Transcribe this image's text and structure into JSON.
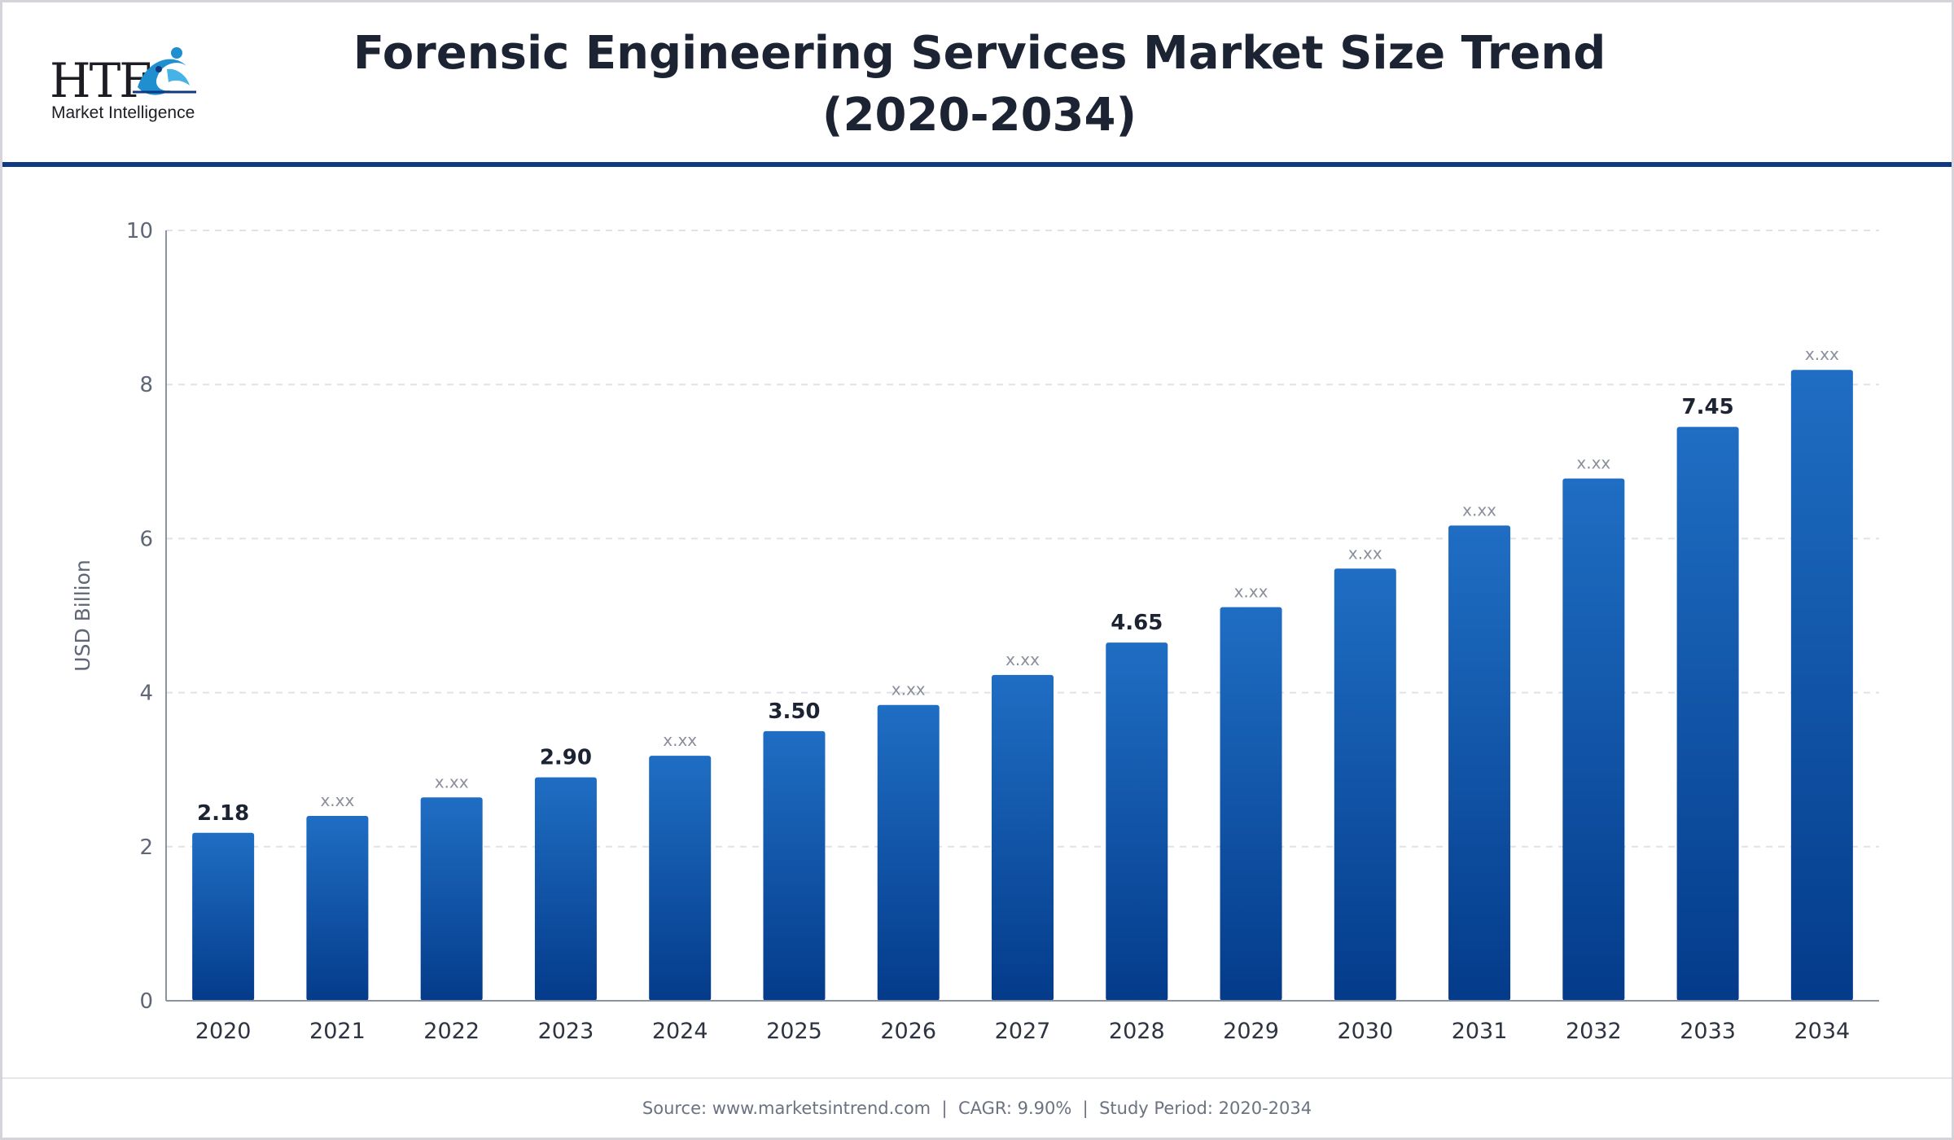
{
  "header": {
    "logo_text": "HTF",
    "logo_subtitle": "Market Intelligence",
    "title_line1": "Forensic Engineering Services Market Size Trend",
    "title_line2": "(2020-2034)"
  },
  "footer": {
    "source": "Source: www.marketsintrend.com",
    "separator": "|",
    "cagr": "CAGR: 9.90%",
    "study_period": "Study Period: 2020-2034"
  },
  "colors": {
    "bar_top": "#1f6ec4",
    "bar_bottom": "#043b8a",
    "header_rule": "#0f3a82",
    "label_strong": "#1c2333",
    "label_placeholder": "#8a8f9c"
  },
  "chart_data": {
    "type": "bar",
    "title": "Forensic Engineering Services Market Size Trend (2020-2034)",
    "xlabel": "",
    "ylabel": "USD Billion",
    "ylim": [
      0,
      10
    ],
    "yticks": [
      0,
      2,
      4,
      6,
      8,
      10
    ],
    "grid": true,
    "categories": [
      "2020",
      "2021",
      "2022",
      "2023",
      "2024",
      "2025",
      "2026",
      "2027",
      "2028",
      "2029",
      "2030",
      "2031",
      "2032",
      "2033",
      "2034"
    ],
    "values": [
      2.18,
      2.4,
      2.64,
      2.9,
      3.18,
      3.5,
      3.84,
      4.23,
      4.65,
      5.11,
      5.61,
      6.17,
      6.78,
      7.45,
      8.19
    ],
    "data_labels": [
      "2.18",
      "x.xx",
      "x.xx",
      "2.90",
      "x.xx",
      "3.50",
      "x.xx",
      "x.xx",
      "4.65",
      "x.xx",
      "x.xx",
      "x.xx",
      "x.xx",
      "7.45",
      "x.xx"
    ]
  }
}
